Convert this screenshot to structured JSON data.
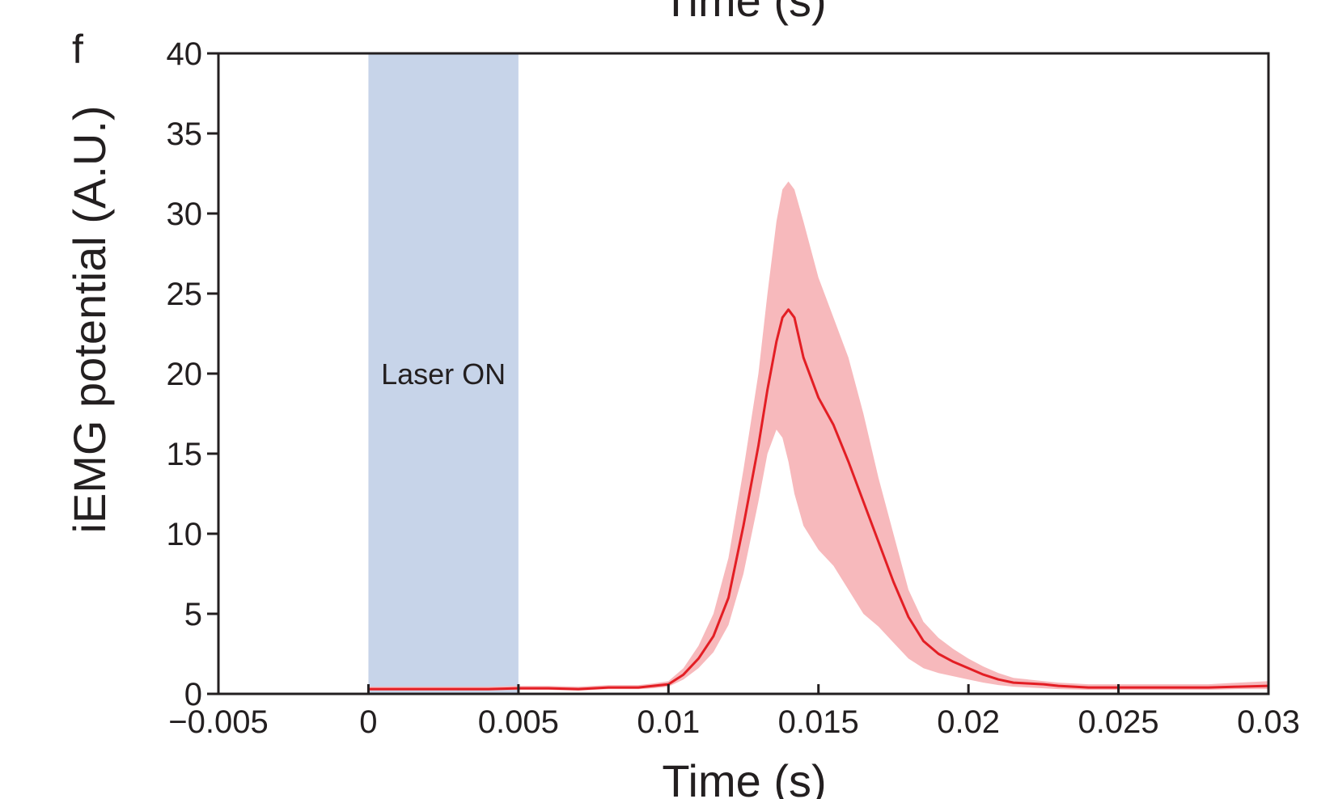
{
  "panel_label": "f",
  "top_cut_title": "Time (s)",
  "colors": {
    "mean_line": "#e31e24",
    "error_band": "#f7b9bc",
    "laser_band": "#c7d4e9",
    "axis": "#231f20"
  },
  "chart_data": {
    "type": "line",
    "xlabel": "Time (s)",
    "ylabel": "iEMG potential (A.U.)",
    "xlim": [
      -0.005,
      0.03
    ],
    "ylim": [
      0,
      40
    ],
    "x_ticks": [
      -0.005,
      0,
      0.005,
      0.01,
      0.015,
      0.02,
      0.025,
      0.03
    ],
    "x_tick_labels": [
      "−0.005",
      "0",
      "0.005",
      "0.01",
      "0.015",
      "0.02",
      "0.025",
      "0.03"
    ],
    "y_ticks": [
      0,
      5,
      10,
      15,
      20,
      25,
      30,
      35,
      40
    ],
    "y_tick_labels": [
      "0",
      "5",
      "10",
      "15",
      "20",
      "25",
      "30",
      "35",
      "40"
    ],
    "grid": false,
    "shaded_region": {
      "label": "Laser ON",
      "x_start": 0,
      "x_end": 0.005
    },
    "series": [
      {
        "x": [
          0,
          0.001,
          0.002,
          0.003,
          0.004,
          0.005,
          0.006,
          0.007,
          0.008,
          0.009,
          0.0095,
          0.01,
          0.0105,
          0.011,
          0.0115,
          0.012,
          0.0125,
          0.013,
          0.0133,
          0.0136,
          0.0138,
          0.014,
          0.0142,
          0.0145,
          0.015,
          0.0155,
          0.016,
          0.0165,
          0.017,
          0.0175,
          0.018,
          0.0185,
          0.019,
          0.0195,
          0.02,
          0.0205,
          0.021,
          0.0215,
          0.022,
          0.0225,
          0.023,
          0.024,
          0.025,
          0.026,
          0.027,
          0.028,
          0.029,
          0.03
        ],
        "y": [
          0.3,
          0.3,
          0.3,
          0.3,
          0.3,
          0.35,
          0.35,
          0.3,
          0.4,
          0.4,
          0.5,
          0.6,
          1.2,
          2.2,
          3.6,
          6.0,
          10.5,
          15.5,
          19.0,
          22.0,
          23.5,
          24.0,
          23.5,
          21.0,
          18.5,
          16.8,
          14.5,
          12.0,
          9.5,
          7.0,
          4.8,
          3.3,
          2.5,
          2.0,
          1.6,
          1.2,
          0.9,
          0.7,
          0.65,
          0.6,
          0.5,
          0.4,
          0.4,
          0.4,
          0.4,
          0.4,
          0.45,
          0.5
        ],
        "y_lower": [
          0.2,
          0.2,
          0.2,
          0.2,
          0.2,
          0.25,
          0.25,
          0.2,
          0.3,
          0.3,
          0.35,
          0.45,
          0.9,
          1.6,
          2.6,
          4.3,
          7.5,
          12.0,
          15.0,
          16.5,
          16.0,
          14.5,
          12.5,
          10.5,
          9.0,
          8.0,
          6.5,
          5.0,
          4.2,
          3.2,
          2.2,
          1.6,
          1.3,
          1.1,
          0.9,
          0.7,
          0.55,
          0.45,
          0.4,
          0.35,
          0.3,
          0.25,
          0.25,
          0.25,
          0.25,
          0.25,
          0.3,
          0.3
        ],
        "y_upper": [
          0.45,
          0.45,
          0.45,
          0.45,
          0.45,
          0.5,
          0.5,
          0.45,
          0.55,
          0.55,
          0.65,
          0.8,
          1.6,
          3.0,
          5.0,
          8.5,
          14.0,
          20.0,
          25.0,
          29.5,
          31.5,
          32.0,
          31.5,
          29.5,
          26.0,
          23.5,
          21.0,
          17.5,
          13.5,
          10.0,
          6.5,
          4.5,
          3.5,
          2.8,
          2.2,
          1.7,
          1.3,
          1.0,
          0.9,
          0.8,
          0.7,
          0.6,
          0.6,
          0.6,
          0.6,
          0.6,
          0.7,
          0.8
        ]
      }
    ]
  }
}
